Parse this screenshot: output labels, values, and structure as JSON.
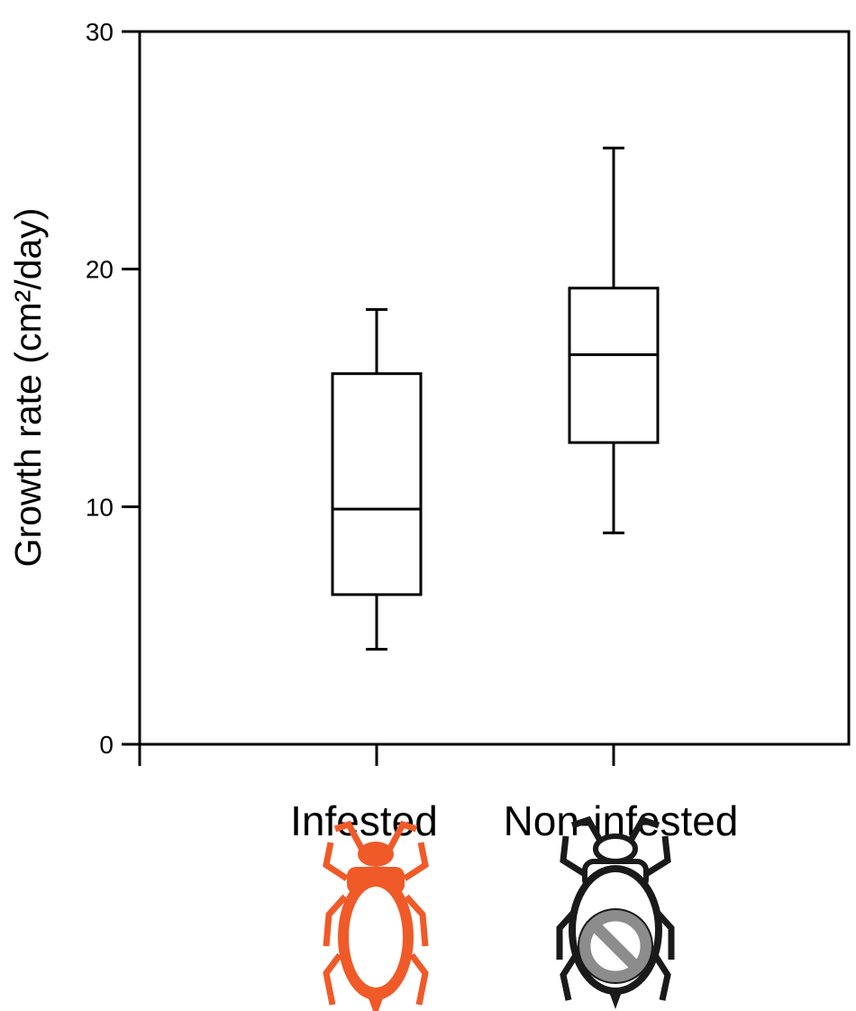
{
  "chart_data": {
    "type": "boxplot",
    "title": "",
    "xlabel": "",
    "ylabel": "Growth rate (cm²/day)",
    "ylim": [
      0,
      30
    ],
    "yticks": [
      0,
      10,
      20,
      30
    ],
    "categories": [
      "Infested",
      "Non-infested"
    ],
    "boxes": [
      {
        "category": "Infested",
        "min": 4.0,
        "q1": 6.3,
        "median": 9.9,
        "q3": 15.6,
        "max": 18.3
      },
      {
        "category": "Non-infested",
        "min": 8.9,
        "q1": 12.7,
        "median": 16.4,
        "q3": 19.2,
        "max": 25.1
      }
    ],
    "grid": false
  },
  "icons": [
    {
      "name": "aphid-icon",
      "category": "Infested",
      "color": "#f05a28"
    },
    {
      "name": "aphid-crossed-icon",
      "category": "Non-infested",
      "color": "#1a1a1a",
      "overlay_color": "#8c8c8c"
    }
  ]
}
